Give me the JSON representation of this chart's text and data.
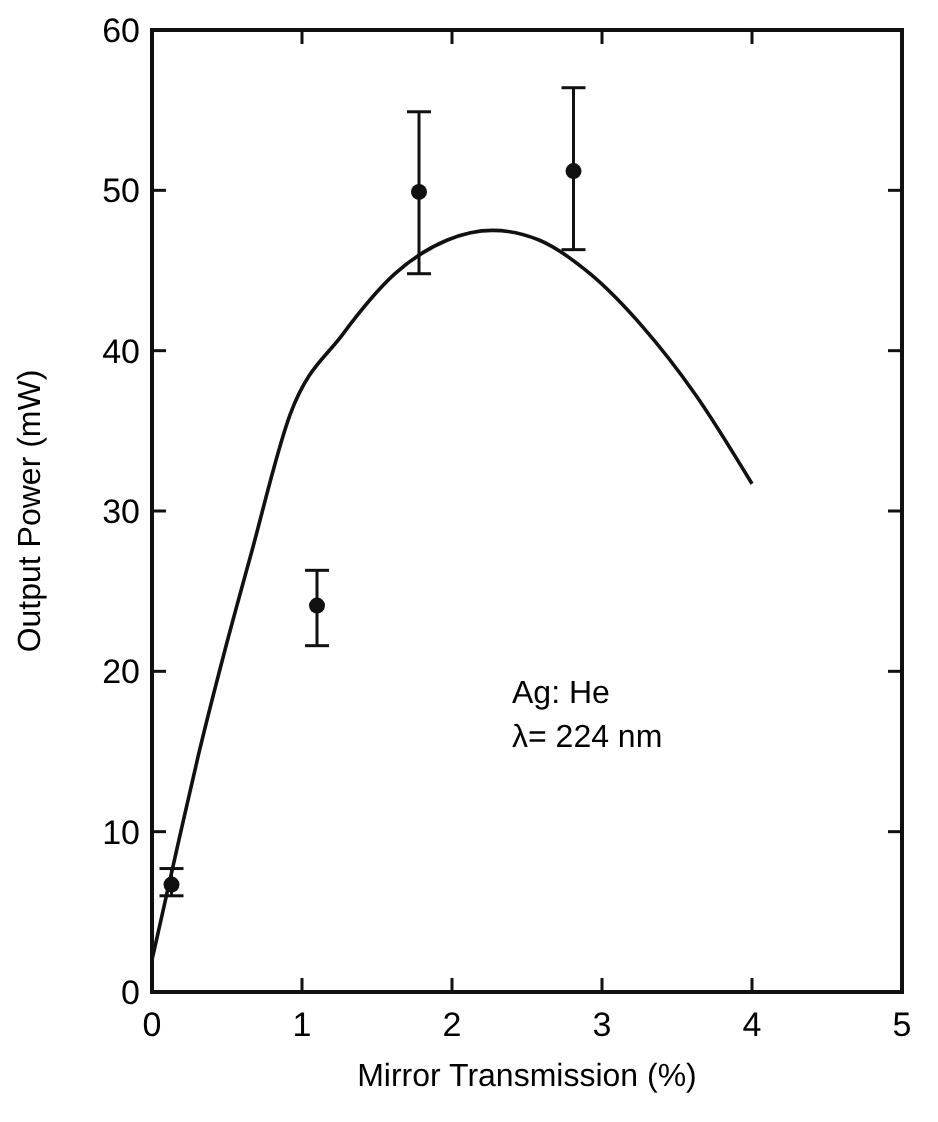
{
  "chart_data": {
    "type": "scatter",
    "xlabel": "Mirror Transmission (%)",
    "ylabel": "Output Power (mW)",
    "xlim": [
      0,
      5
    ],
    "xticks": [
      0,
      1,
      2,
      3,
      4,
      5
    ],
    "ylim": [
      0,
      60
    ],
    "yticks": [
      0,
      10,
      20,
      30,
      40,
      50,
      60
    ],
    "grid": false,
    "annotations": [
      "Ag: He",
      "λ= 224 nm"
    ],
    "series": [
      {
        "color": "#111111",
        "marker": "circle",
        "x": [
          0.13,
          1.1,
          1.78,
          2.81
        ],
        "values": [
          6.7,
          24.1,
          49.9,
          51.2
        ],
        "errors": [
          [
            6,
            7.7
          ],
          [
            21.6,
            26.3
          ],
          [
            44.8,
            54.9
          ],
          [
            46.3,
            56.4
          ]
        ]
      },
      {
        "type": "line",
        "color": "#111111",
        "marker": "none",
        "line_style": "solid",
        "x": [
          0,
          0.18,
          0.31,
          0.48,
          0.66,
          0.92,
          1.27,
          1.62,
          1.97,
          2.27,
          2.58,
          2.92,
          3.27,
          3.62,
          4.0
        ],
        "values": [
          2,
          9.5,
          14.8,
          21.1,
          27.3,
          36,
          41,
          44.8,
          46.9,
          47.5,
          46.9,
          44.8,
          41.5,
          37.3,
          31.7
        ]
      }
    ]
  }
}
